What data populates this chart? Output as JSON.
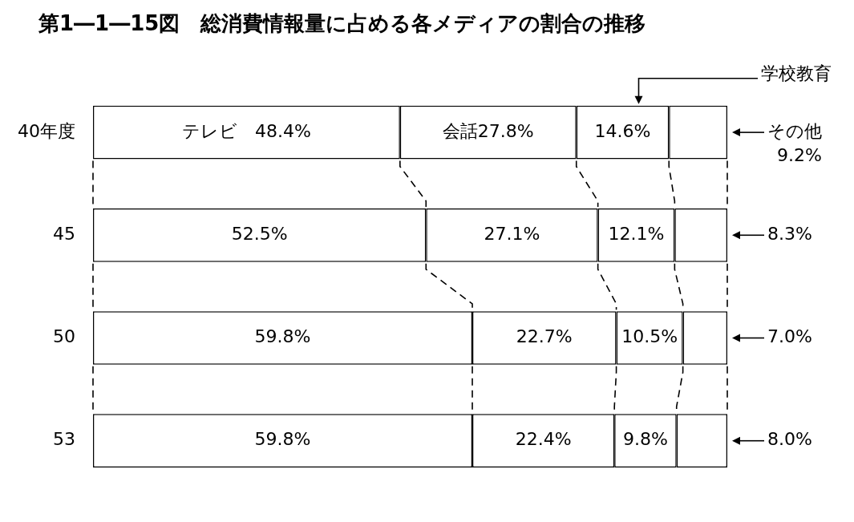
{
  "chart_data": {
    "type": "bar",
    "title": "第1―1―15図　総消費情報量に占める各メディアの割合の推移",
    "orientation": "horizontal",
    "xlim": [
      0,
      100
    ],
    "stacked": true,
    "categories": [
      "40年度",
      "45",
      "50",
      "53"
    ],
    "series": [
      {
        "name": "テレビ",
        "color": "#ffffff",
        "values": [
          48.4,
          52.5,
          59.8,
          59.8
        ],
        "value_labels": [
          "48.4%",
          "52.5%",
          "59.8%",
          "59.8%"
        ]
      },
      {
        "name": "会話",
        "color": "#ffffff",
        "values": [
          27.8,
          27.1,
          22.7,
          22.4
        ],
        "value_labels": [
          "27.8%",
          "27.1%",
          "22.7%",
          "22.4%"
        ]
      },
      {
        "name": "学校教育",
        "color": "#ffffff",
        "values": [
          14.6,
          12.1,
          10.5,
          9.8
        ],
        "value_labels": [
          "14.6%",
          "12.1%",
          "10.5%",
          "9.8%"
        ]
      },
      {
        "name": "その他",
        "color": "#ffffff",
        "values": [
          9.2,
          8.3,
          7.0,
          8.0
        ],
        "value_labels": [
          "9.2%",
          "8.3%",
          "7.0%",
          "8.0%"
        ]
      }
    ]
  }
}
